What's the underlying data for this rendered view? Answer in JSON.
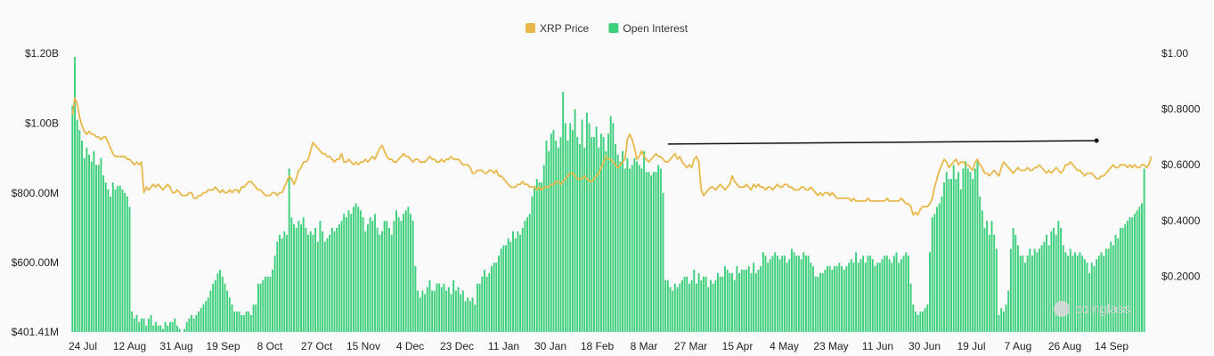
{
  "chart_data": {
    "type": "bar",
    "title": "",
    "legend": {
      "position": "top-center",
      "items": [
        {
          "name": "XRP Price",
          "color": "#e8b84a"
        },
        {
          "name": "Open Interest",
          "color": "#3ecf7c"
        }
      ]
    },
    "watermark": "coinglass",
    "x_ticks": [
      "24 Jul",
      "12 Aug",
      "31 Aug",
      "19 Sep",
      "8 Oct",
      "27 Oct",
      "15 Nov",
      "4 Dec",
      "23 Dec",
      "11 Jan",
      "30 Jan",
      "18 Feb",
      "8 Mar",
      "27 Mar",
      "15 Apr",
      "4 May",
      "23 May",
      "11 Jun",
      "30 Jun",
      "19 Jul",
      "7 Aug",
      "26 Aug",
      "14 Sep"
    ],
    "y_left": {
      "label": "",
      "min": 401.41,
      "max": 1200,
      "unit": "M",
      "ticks": [
        "$1.20B",
        "$1.00B",
        "$800.00M",
        "$600.00M",
        "$401.41M"
      ],
      "tick_values": [
        1200,
        1000,
        800,
        600,
        401.41
      ]
    },
    "y_right": {
      "label": "",
      "min": 0,
      "max": 1.0,
      "ticks": [
        "$1.00",
        "$0.8000",
        "$0.6000",
        "$0.4000",
        "$0.2000"
      ],
      "tick_values": [
        1.0,
        0.8,
        0.6,
        0.4,
        0.2
      ]
    },
    "series": [
      {
        "name": "Open Interest",
        "kind": "bar",
        "axis": "left",
        "color": "#3ecf7c",
        "x_start": "2023-07-22",
        "x_step_days": 1,
        "values_monthly_summary_note": "daily bars",
        "values": [
          1050,
          1190,
          1010,
          980,
          950,
          900,
          930,
          910,
          890,
          920,
          880,
          880,
          900,
          850,
          830,
          810,
          790,
          830,
          810,
          820,
          820,
          810,
          800,
          790,
          760,
          460,
          440,
          450,
          430,
          440,
          440,
          420,
          440,
          450,
          420,
          430,
          420,
          420,
          410,
          430,
          420,
          430,
          430,
          440,
          420,
          410,
          400,
          410,
          430,
          440,
          450,
          440,
          450,
          460,
          470,
          480,
          490,
          500,
          520,
          540,
          550,
          570,
          580,
          560,
          540,
          520,
          500,
          480,
          460,
          460,
          460,
          450,
          450,
          460,
          460,
          450,
          480,
          480,
          540,
          540,
          550,
          560,
          560,
          560,
          580,
          620,
          660,
          680,
          670,
          690,
          680,
          870,
          730,
          710,
          700,
          720,
          710,
          730,
          700,
          680,
          690,
          680,
          700,
          660,
          720,
          690,
          660,
          670,
          680,
          700,
          690,
          700,
          710,
          720,
          740,
          730,
          750,
          740,
          760,
          770,
          760,
          750,
          730,
          690,
          710,
          730,
          720,
          740,
          700,
          680,
          690,
          720,
          720,
          700,
          680,
          720,
          750,
          730,
          720,
          740,
          750,
          760,
          740,
          720,
          590,
          520,
          500,
          520,
          510,
          530,
          550,
          520,
          520,
          540,
          540,
          530,
          540,
          520,
          530,
          510,
          550,
          520,
          530,
          510,
          520,
          490,
          500,
          490,
          500,
          480,
          540,
          540,
          560,
          580,
          560,
          570,
          590,
          600,
          600,
          620,
          640,
          650,
          650,
          670,
          660,
          690,
          670,
          690,
          680,
          700,
          720,
          730,
          740,
          790,
          820,
          840,
          830,
          830,
          880,
          950,
          920,
          970,
          980,
          950,
          930,
          960,
          1090,
          1000,
          950,
          1000,
          980,
          1040,
          960,
          940,
          1010,
          930,
          1030,
          1000,
          960,
          960,
          990,
          930,
          970,
          960,
          920,
          970,
          1020,
          1000,
          940,
          910,
          890,
          920,
          870,
          900,
          870,
          880,
          900,
          890,
          880,
          870,
          920,
          860,
          860,
          850,
          860,
          860,
          880,
          870,
          800,
          550,
          550,
          530,
          520,
          540,
          530,
          540,
          550,
          560,
          560,
          540,
          550,
          580,
          540,
          570,
          550,
          560,
          560,
          530,
          550,
          540,
          550,
          570,
          560,
          560,
          590,
          580,
          570,
          570,
          550,
          590,
          570,
          580,
          580,
          580,
          590,
          570,
          600,
          570,
          580,
          590,
          630,
          620,
          600,
          610,
          620,
          630,
          620,
          610,
          620,
          620,
          600,
          610,
          640,
          630,
          620,
          620,
          610,
          630,
          620,
          620,
          600,
          590,
          560,
          560,
          570,
          570,
          580,
          590,
          590,
          580,
          590,
          590,
          600,
          590,
          580,
          590,
          600,
          610,
          600,
          630,
          600,
          610,
          620,
          600,
          620,
          620,
          610,
          590,
          600,
          600,
          610,
          620,
          620,
          610,
          600,
          620,
          630,
          600,
          610,
          620,
          630,
          620,
          540,
          480,
          460,
          450,
          460,
          460,
          470,
          480,
          630,
          730,
          740,
          760,
          770,
          790,
          830,
          860,
          840,
          840,
          880,
          840,
          860,
          810,
          870,
          890,
          870,
          860,
          840,
          870,
          890,
          790,
          750,
          700,
          720,
          680,
          720,
          680,
          640,
          450,
          470,
          460,
          480,
          520,
          640,
          700,
          680,
          650,
          620,
          620,
          600,
          620,
          640,
          620,
          640,
          630,
          640,
          650,
          660,
          680,
          650,
          690,
          700,
          680,
          720,
          700,
          650,
          630,
          620,
          640,
          620,
          630,
          620,
          630,
          620,
          610,
          600,
          570,
          600,
          590,
          610,
          620,
          630,
          620,
          640,
          640,
          660,
          650,
          680,
          670,
          700,
          700,
          710,
          720,
          730,
          730,
          740,
          750,
          760,
          770,
          870
        ]
      },
      {
        "name": "XRP Price",
        "kind": "line",
        "axis": "right",
        "color": "#e8b84a",
        "x_start": "2023-07-22",
        "x_step_days": 1,
        "values": [
          0.78,
          0.84,
          0.82,
          0.77,
          0.74,
          0.72,
          0.71,
          0.72,
          0.71,
          0.71,
          0.7,
          0.7,
          0.69,
          0.7,
          0.7,
          0.68,
          0.66,
          0.64,
          0.63,
          0.63,
          0.63,
          0.63,
          0.63,
          0.62,
          0.62,
          0.61,
          0.6,
          0.61,
          0.6,
          0.61,
          0.5,
          0.52,
          0.51,
          0.52,
          0.53,
          0.52,
          0.53,
          0.52,
          0.51,
          0.52,
          0.53,
          0.52,
          0.5,
          0.5,
          0.51,
          0.5,
          0.49,
          0.49,
          0.49,
          0.5,
          0.5,
          0.48,
          0.48,
          0.49,
          0.49,
          0.5,
          0.5,
          0.51,
          0.51,
          0.51,
          0.52,
          0.51,
          0.5,
          0.51,
          0.5,
          0.5,
          0.51,
          0.5,
          0.51,
          0.51,
          0.5,
          0.52,
          0.52,
          0.53,
          0.54,
          0.54,
          0.53,
          0.52,
          0.51,
          0.51,
          0.5,
          0.49,
          0.49,
          0.49,
          0.5,
          0.5,
          0.49,
          0.5,
          0.5,
          0.52,
          0.54,
          0.56,
          0.55,
          0.53,
          0.55,
          0.58,
          0.59,
          0.61,
          0.61,
          0.62,
          0.65,
          0.68,
          0.67,
          0.66,
          0.65,
          0.64,
          0.64,
          0.63,
          0.63,
          0.62,
          0.61,
          0.62,
          0.62,
          0.64,
          0.61,
          0.61,
          0.62,
          0.61,
          0.6,
          0.61,
          0.6,
          0.61,
          0.61,
          0.62,
          0.61,
          0.62,
          0.63,
          0.62,
          0.64,
          0.66,
          0.67,
          0.65,
          0.63,
          0.62,
          0.62,
          0.61,
          0.61,
          0.62,
          0.63,
          0.64,
          0.63,
          0.63,
          0.62,
          0.61,
          0.62,
          0.62,
          0.61,
          0.61,
          0.61,
          0.62,
          0.63,
          0.62,
          0.62,
          0.61,
          0.61,
          0.62,
          0.61,
          0.62,
          0.62,
          0.63,
          0.62,
          0.62,
          0.62,
          0.61,
          0.6,
          0.6,
          0.6,
          0.59,
          0.57,
          0.57,
          0.58,
          0.58,
          0.58,
          0.57,
          0.57,
          0.58,
          0.58,
          0.57,
          0.58,
          0.56,
          0.56,
          0.55,
          0.54,
          0.53,
          0.52,
          0.52,
          0.52,
          0.53,
          0.53,
          0.54,
          0.53,
          0.53,
          0.52,
          0.52,
          0.52,
          0.51,
          0.52,
          0.51,
          0.52,
          0.52,
          0.52,
          0.53,
          0.53,
          0.54,
          0.54,
          0.53,
          0.54,
          0.55,
          0.56,
          0.57,
          0.57,
          0.56,
          0.55,
          0.55,
          0.55,
          0.56,
          0.55,
          0.54,
          0.54,
          0.55,
          0.56,
          0.57,
          0.59,
          0.61,
          0.63,
          0.62,
          0.62,
          0.61,
          0.6,
          0.59,
          0.6,
          0.61,
          0.62,
          0.69,
          0.71,
          0.69,
          0.66,
          0.62,
          0.63,
          0.65,
          0.63,
          0.62,
          0.61,
          0.62,
          0.63,
          0.64,
          0.63,
          0.63,
          0.62,
          0.61,
          0.61,
          0.62,
          0.63,
          0.64,
          0.62,
          0.63,
          0.61,
          0.6,
          0.59,
          0.6,
          0.59,
          0.62,
          0.63,
          0.61,
          0.51,
          0.49,
          0.5,
          0.51,
          0.52,
          0.52,
          0.51,
          0.52,
          0.53,
          0.52,
          0.51,
          0.52,
          0.53,
          0.56,
          0.54,
          0.53,
          0.52,
          0.52,
          0.52,
          0.53,
          0.52,
          0.51,
          0.53,
          0.52,
          0.53,
          0.52,
          0.52,
          0.51,
          0.52,
          0.52,
          0.51,
          0.52,
          0.53,
          0.52,
          0.52,
          0.53,
          0.53,
          0.52,
          0.52,
          0.51,
          0.51,
          0.51,
          0.52,
          0.52,
          0.51,
          0.51,
          0.52,
          0.51,
          0.5,
          0.49,
          0.5,
          0.49,
          0.5,
          0.5,
          0.49,
          0.5,
          0.49,
          0.48,
          0.48,
          0.48,
          0.48,
          0.48,
          0.48,
          0.47,
          0.48,
          0.47,
          0.47,
          0.47,
          0.47,
          0.47,
          0.48,
          0.47,
          0.47,
          0.47,
          0.47,
          0.47,
          0.47,
          0.47,
          0.48,
          0.47,
          0.47,
          0.47,
          0.47,
          0.47,
          0.48,
          0.47,
          0.46,
          0.46,
          0.45,
          0.42,
          0.43,
          0.42,
          0.44,
          0.45,
          0.45,
          0.45,
          0.46,
          0.48,
          0.52,
          0.55,
          0.58,
          0.6,
          0.62,
          0.61,
          0.59,
          0.6,
          0.61,
          0.62,
          0.6,
          0.61,
          0.61,
          0.6,
          0.6,
          0.59,
          0.58,
          0.61,
          0.62,
          0.6,
          0.59,
          0.57,
          0.57,
          0.56,
          0.57,
          0.58,
          0.57,
          0.56,
          0.59,
          0.61,
          0.6,
          0.59,
          0.58,
          0.57,
          0.58,
          0.59,
          0.58,
          0.58,
          0.58,
          0.59,
          0.58,
          0.58,
          0.59,
          0.59,
          0.6,
          0.59,
          0.58,
          0.57,
          0.58,
          0.57,
          0.58,
          0.59,
          0.58,
          0.57,
          0.58,
          0.6,
          0.6,
          0.61,
          0.6,
          0.59,
          0.58,
          0.58,
          0.57,
          0.56,
          0.57,
          0.57,
          0.57,
          0.56,
          0.55,
          0.55,
          0.56,
          0.56,
          0.57,
          0.58,
          0.59,
          0.6,
          0.59,
          0.59,
          0.6,
          0.6,
          0.6,
          0.59,
          0.6,
          0.59,
          0.6,
          0.59,
          0.59,
          0.6,
          0.6,
          0.59,
          0.6,
          0.63
        ]
      }
    ],
    "annotations": [
      {
        "type": "trendline",
        "color": "#111111",
        "from": {
          "index": 250,
          "axis": "left",
          "value": 940
        },
        "to": {
          "index": 430,
          "axis": "left",
          "value": 950
        }
      }
    ]
  }
}
